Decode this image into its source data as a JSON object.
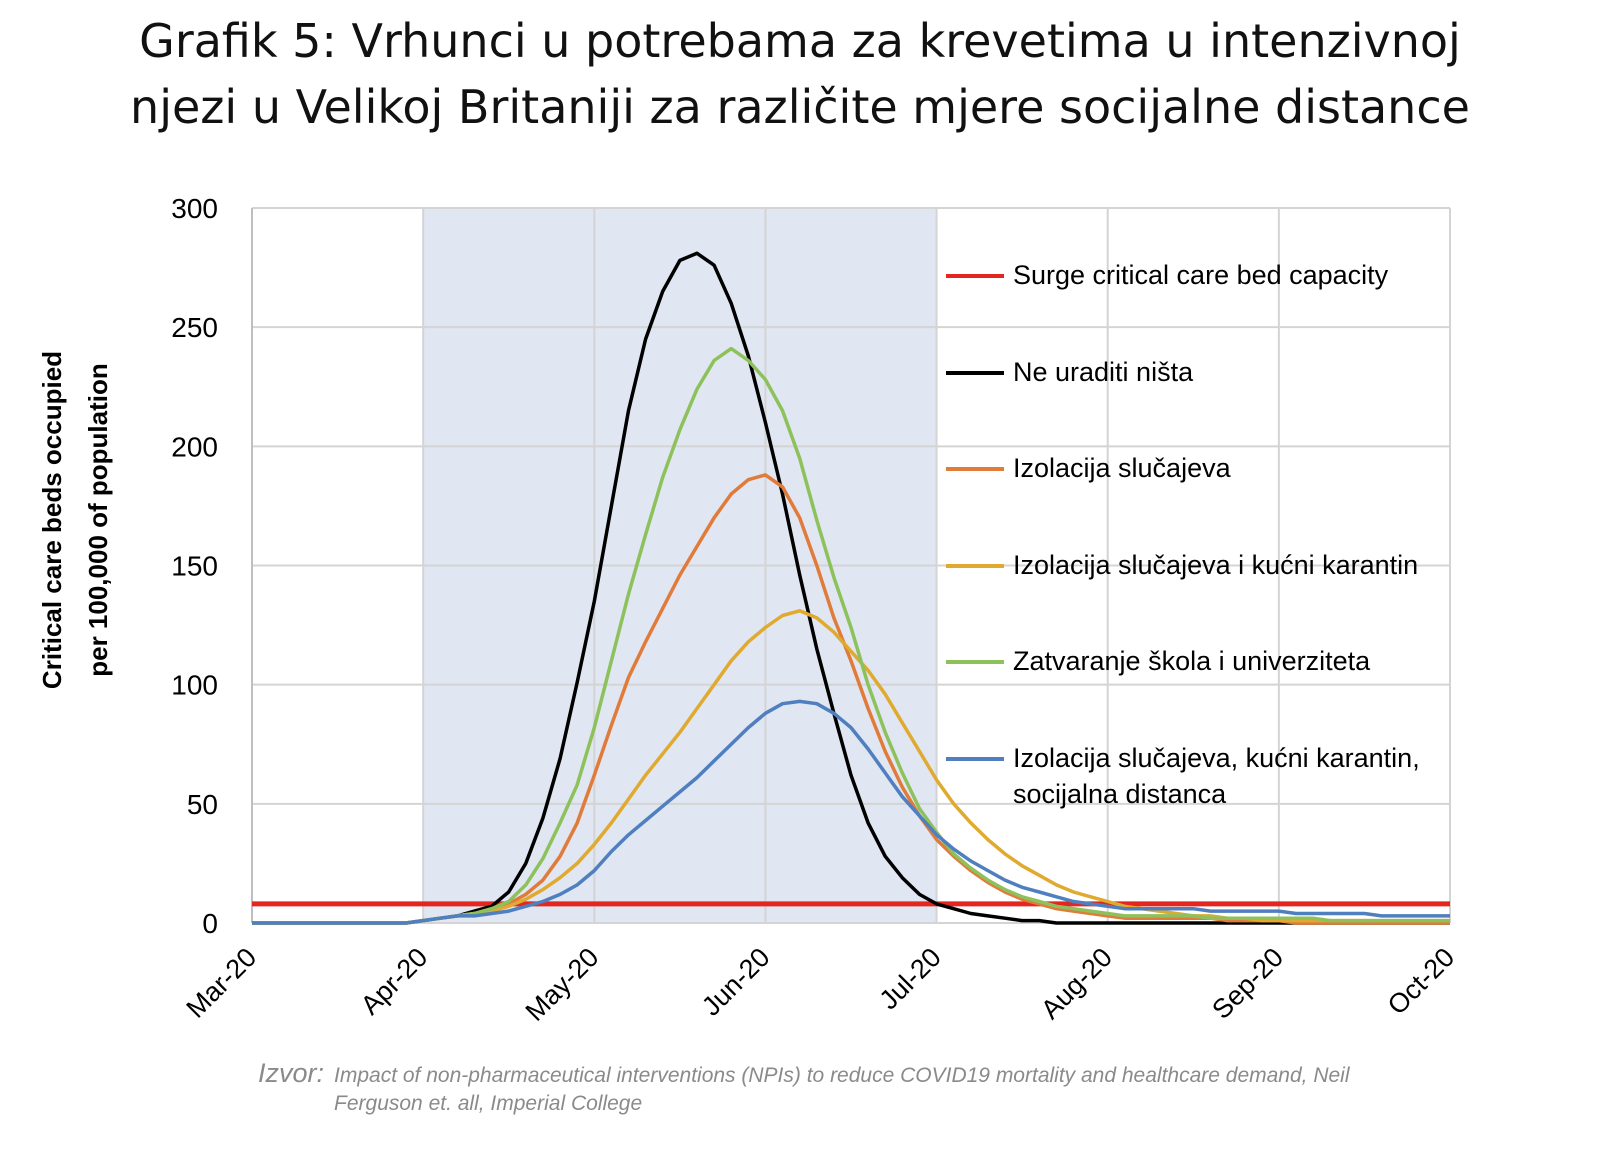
{
  "chart_data": {
    "type": "line",
    "title": [
      "Grafik 5: Vrhunci u potrebama za krevetima u intenzivnoj",
      "njezi u Velikoj Britaniji za različite mjere socijalne distance"
    ],
    "y_label": [
      "Critical care beds occupied",
      "per 100,000 of population"
    ],
    "source_label": "Izvor:",
    "source": "Impact of non-pharmaceutical interventions (NPIs) to reduce COVID19 mortality and healthcare demand, Neil Ferguson et. all, Imperial College",
    "xlim": [
      0,
      7
    ],
    "xticks": [
      {
        "value": 0,
        "label": "Mar-20"
      },
      {
        "value": 1,
        "label": "Apr-20"
      },
      {
        "value": 2,
        "label": "May-20"
      },
      {
        "value": 3,
        "label": "Jun-20"
      },
      {
        "value": 4,
        "label": "Jul-20"
      },
      {
        "value": 5,
        "label": "Aug-20"
      },
      {
        "value": 6,
        "label": "Sep-20"
      },
      {
        "value": 7,
        "label": "Oct-20"
      }
    ],
    "ylim": [
      0,
      300
    ],
    "yticks": [
      0,
      50,
      100,
      150,
      200,
      250,
      300
    ],
    "grid": true,
    "highlight_xlim": [
      1,
      4
    ],
    "x": [
      0,
      0.1,
      0.2,
      0.3,
      0.4,
      0.5,
      0.6,
      0.7,
      0.8,
      0.9,
      1,
      1.1,
      1.2,
      1.3,
      1.4,
      1.5,
      1.6,
      1.7,
      1.8,
      1.9,
      2,
      2.1,
      2.2,
      2.3,
      2.4,
      2.5,
      2.6,
      2.7,
      2.8,
      2.9,
      3,
      3.1,
      3.2,
      3.3,
      3.4,
      3.5,
      3.6,
      3.7,
      3.8,
      3.9,
      4,
      4.1,
      4.2,
      4.3,
      4.4,
      4.5,
      4.6,
      4.7,
      4.8,
      4.9,
      5,
      5.1,
      5.2,
      5.3,
      5.4,
      5.5,
      5.6,
      5.7,
      5.8,
      5.9,
      6,
      6.1,
      6.2,
      6.3,
      6.4,
      6.5,
      6.6,
      6.7,
      6.8,
      6.9,
      7
    ],
    "series": [
      {
        "name": "Surge critical care bed capacity",
        "color": "#e3261f",
        "values": [
          8,
          8,
          8,
          8,
          8,
          8,
          8,
          8,
          8,
          8,
          8,
          8,
          8,
          8,
          8,
          8,
          8,
          8,
          8,
          8,
          8,
          8,
          8,
          8,
          8,
          8,
          8,
          8,
          8,
          8,
          8,
          8,
          8,
          8,
          8,
          8,
          8,
          8,
          8,
          8,
          8,
          8,
          8,
          8,
          8,
          8,
          8,
          8,
          8,
          8,
          8,
          8,
          8,
          8,
          8,
          8,
          8,
          8,
          8,
          8,
          8,
          8,
          8,
          8,
          8,
          8,
          8,
          8,
          8,
          8,
          8
        ]
      },
      {
        "name": "Ne uraditi ništa",
        "color": "#000000",
        "values": [
          0,
          0,
          0,
          0,
          0,
          0,
          0,
          0,
          0,
          0,
          1,
          2,
          3,
          5,
          7,
          13,
          25,
          44,
          69,
          101,
          135,
          175,
          215,
          245,
          265,
          278,
          281,
          276,
          260,
          238,
          210,
          180,
          146,
          115,
          88,
          62,
          42,
          28,
          19,
          12,
          8,
          6,
          4,
          3,
          2,
          1,
          1,
          0,
          0,
          0,
          0,
          0,
          0,
          0,
          0,
          0,
          0,
          0,
          0,
          0,
          0,
          0,
          0,
          0,
          0,
          0,
          0,
          0,
          0,
          0,
          0
        ]
      },
      {
        "name": "Izolacija slučajeva",
        "color": "#e07b39",
        "values": [
          0,
          0,
          0,
          0,
          0,
          0,
          0,
          0,
          0,
          0,
          1,
          2,
          3,
          4,
          6,
          8,
          12,
          18,
          28,
          42,
          62,
          83,
          103,
          118,
          132,
          146,
          158,
          170,
          180,
          186,
          188,
          183,
          170,
          150,
          128,
          110,
          90,
          72,
          57,
          45,
          35,
          28,
          22,
          17,
          13,
          10,
          8,
          6,
          5,
          4,
          3,
          2,
          2,
          2,
          2,
          2,
          2,
          1,
          1,
          1,
          1,
          0,
          0,
          0,
          0,
          0,
          0,
          0,
          0,
          0,
          0
        ]
      },
      {
        "name": "Izolacija slučajeva i kućni karantin",
        "color": "#e0aa30",
        "values": [
          0,
          0,
          0,
          0,
          0,
          0,
          0,
          0,
          0,
          0,
          1,
          2,
          3,
          4,
          5,
          7,
          10,
          14,
          19,
          25,
          33,
          42,
          52,
          62,
          71,
          80,
          90,
          100,
          110,
          118,
          124,
          129,
          131,
          128,
          122,
          114,
          106,
          96,
          84,
          72,
          60,
          50,
          42,
          35,
          29,
          24,
          20,
          16,
          13,
          11,
          9,
          7,
          6,
          5,
          4,
          3,
          3,
          2,
          2,
          1,
          1,
          1,
          1,
          1,
          1,
          1,
          1,
          1,
          1,
          1,
          1
        ]
      },
      {
        "name": "Zatvaranje škola i univerziteta",
        "color": "#8dc15b",
        "values": [
          0,
          0,
          0,
          0,
          0,
          0,
          0,
          0,
          0,
          0,
          1,
          2,
          3,
          4,
          6,
          9,
          16,
          27,
          42,
          58,
          82,
          110,
          138,
          163,
          187,
          207,
          224,
          236,
          241,
          236,
          228,
          215,
          195,
          169,
          145,
          124,
          100,
          80,
          63,
          48,
          38,
          29,
          23,
          18,
          14,
          11,
          9,
          7,
          6,
          5,
          4,
          3,
          3,
          3,
          3,
          3,
          2,
          2,
          2,
          2,
          2,
          2,
          2,
          1,
          1,
          1,
          1,
          1,
          1,
          1,
          1
        ]
      },
      {
        "name": "Izolacija slučajeva, kućni karantin, socijalna distanca",
        "color": "#4f7fbf",
        "values": [
          0,
          0,
          0,
          0,
          0,
          0,
          0,
          0,
          0,
          0,
          1,
          2,
          3,
          3,
          4,
          5,
          7,
          9,
          12,
          16,
          22,
          30,
          37,
          43,
          49,
          55,
          61,
          68,
          75,
          82,
          88,
          92,
          93,
          92,
          88,
          82,
          73,
          63,
          53,
          45,
          37,
          31,
          26,
          22,
          18,
          15,
          13,
          11,
          9,
          8,
          7,
          6,
          6,
          6,
          6,
          6,
          5,
          5,
          5,
          5,
          5,
          4,
          4,
          4,
          4,
          4,
          3,
          3,
          3,
          3,
          3
        ]
      }
    ]
  }
}
